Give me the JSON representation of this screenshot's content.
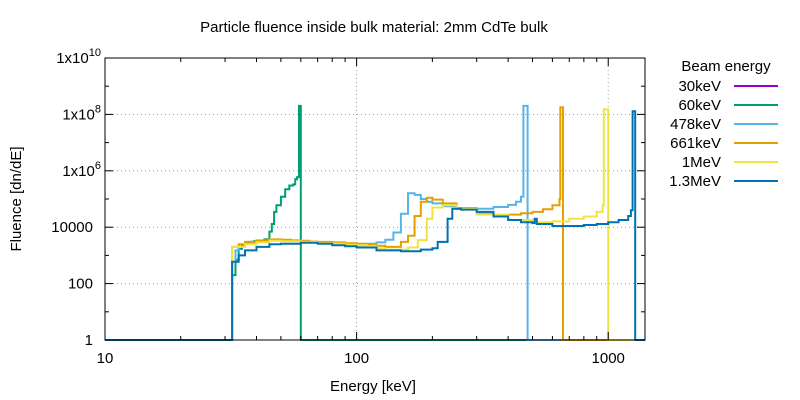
{
  "chart_data": {
    "type": "line",
    "title": "Particle fluence inside bulk material: 2mm CdTe bulk",
    "xlabel": "Energy [keV]",
    "ylabel": "Fluence [dn/dE]",
    "x_scale": "log",
    "y_scale": "log",
    "xlim": [
      10,
      1400
    ],
    "ylim": [
      1,
      10000000000
    ],
    "grid": true,
    "legend": {
      "title": "Beam energy",
      "placement": "right-outside"
    },
    "x_ticks": [
      {
        "value": 10,
        "label": "10"
      },
      {
        "value": 100,
        "label": "100"
      },
      {
        "value": 1000,
        "label": "1000"
      }
    ],
    "y_ticks": [
      {
        "value": 1,
        "label": "1",
        "exp": ""
      },
      {
        "value": 100,
        "label": "100",
        "exp": ""
      },
      {
        "value": 10000,
        "label": "10000",
        "exp": ""
      },
      {
        "value": 1000000,
        "label": "1x10",
        "exp": "6"
      },
      {
        "value": 100000000,
        "label": "1x10",
        "exp": "8"
      },
      {
        "value": 10000000000,
        "label": "1x10",
        "exp": "10"
      }
    ],
    "series": [
      {
        "name": "30keV",
        "color": "#9400d3",
        "points": [
          [
            10,
            1
          ],
          [
            30,
            1
          ],
          [
            32,
            1
          ]
        ]
      },
      {
        "name": "60keV",
        "color": "#009e73",
        "points": [
          [
            10,
            1
          ],
          [
            32,
            1
          ],
          [
            32,
            200
          ],
          [
            33,
            700
          ],
          [
            34,
            1700
          ],
          [
            35,
            2400
          ],
          [
            36,
            2800
          ],
          [
            37,
            3000
          ],
          [
            39,
            3200
          ],
          [
            41,
            3300
          ],
          [
            43,
            3700
          ],
          [
            45,
            7000
          ],
          [
            46,
            13000
          ],
          [
            47,
            35000
          ],
          [
            48,
            60000
          ],
          [
            50,
            120000
          ],
          [
            52,
            220000
          ],
          [
            54,
            300000
          ],
          [
            56,
            330000
          ],
          [
            57,
            500000
          ],
          [
            58,
            600000
          ],
          [
            59,
            200000000
          ],
          [
            60,
            1
          ],
          [
            1400,
            1
          ]
        ]
      },
      {
        "name": "478keV",
        "color": "#56b4e9",
        "points": [
          [
            10,
            1
          ],
          [
            32,
            1
          ],
          [
            32,
            600
          ],
          [
            33,
            1500
          ],
          [
            34,
            2000
          ],
          [
            36,
            2600
          ],
          [
            40,
            3100
          ],
          [
            45,
            3600
          ],
          [
            50,
            3300
          ],
          [
            60,
            3000
          ],
          [
            70,
            2900
          ],
          [
            80,
            2700
          ],
          [
            90,
            2600
          ],
          [
            100,
            2300
          ],
          [
            110,
            2600
          ],
          [
            120,
            2900
          ],
          [
            130,
            3600
          ],
          [
            140,
            6500
          ],
          [
            150,
            30000
          ],
          [
            160,
            160000
          ],
          [
            170,
            140000
          ],
          [
            180,
            100000
          ],
          [
            190,
            80000
          ],
          [
            200,
            70000
          ],
          [
            220,
            55000
          ],
          [
            250,
            48000
          ],
          [
            300,
            45000
          ],
          [
            350,
            52000
          ],
          [
            400,
            62000
          ],
          [
            430,
            80000
          ],
          [
            450,
            120000
          ],
          [
            460,
            200000000
          ],
          [
            478,
            1
          ],
          [
            1400,
            1
          ]
        ]
      },
      {
        "name": "661keV",
        "color": "#e69f00",
        "points": [
          [
            10,
            1
          ],
          [
            32,
            1
          ],
          [
            32,
            2000
          ],
          [
            34,
            2500
          ],
          [
            36,
            3000
          ],
          [
            40,
            3400
          ],
          [
            45,
            3700
          ],
          [
            50,
            3600
          ],
          [
            55,
            3400
          ],
          [
            60,
            3300
          ],
          [
            65,
            3100
          ],
          [
            70,
            3000
          ],
          [
            80,
            2900
          ],
          [
            90,
            2700
          ],
          [
            100,
            2600
          ],
          [
            110,
            2500
          ],
          [
            120,
            2200
          ],
          [
            130,
            2000
          ],
          [
            140,
            2000
          ],
          [
            150,
            3000
          ],
          [
            160,
            5000
          ],
          [
            170,
            25000
          ],
          [
            180,
            80000
          ],
          [
            190,
            110000
          ],
          [
            200,
            95000
          ],
          [
            220,
            70000
          ],
          [
            250,
            45000
          ],
          [
            300,
            30000
          ],
          [
            350,
            27000
          ],
          [
            400,
            28000
          ],
          [
            450,
            31000
          ],
          [
            500,
            35000
          ],
          [
            550,
            43000
          ],
          [
            600,
            60000
          ],
          [
            640,
            100000
          ],
          [
            645,
            180000000
          ],
          [
            661,
            1
          ],
          [
            1400,
            1
          ]
        ]
      },
      {
        "name": "1MeV",
        "color": "#f0e442",
        "points": [
          [
            10,
            1
          ],
          [
            32,
            1
          ],
          [
            32,
            2000
          ],
          [
            36,
            2500
          ],
          [
            40,
            2900
          ],
          [
            45,
            3300
          ],
          [
            50,
            3200
          ],
          [
            60,
            3000
          ],
          [
            70,
            2700
          ],
          [
            80,
            2600
          ],
          [
            90,
            2400
          ],
          [
            100,
            2300
          ],
          [
            110,
            2100
          ],
          [
            120,
            1800
          ],
          [
            130,
            1600
          ],
          [
            150,
            1600
          ],
          [
            160,
            1900
          ],
          [
            175,
            3500
          ],
          [
            190,
            20000
          ],
          [
            200,
            50000
          ],
          [
            220,
            60000
          ],
          [
            250,
            45000
          ],
          [
            300,
            28000
          ],
          [
            400,
            18000
          ],
          [
            500,
            15000
          ],
          [
            600,
            16000
          ],
          [
            700,
            20000
          ],
          [
            800,
            24000
          ],
          [
            900,
            35000
          ],
          [
            950,
            60000
          ],
          [
            960,
            150000000
          ],
          [
            1000,
            1
          ],
          [
            1400,
            1
          ]
        ]
      },
      {
        "name": "1.3MeV",
        "color": "#0072b2",
        "points": [
          [
            10,
            1
          ],
          [
            32,
            1
          ],
          [
            32,
            600
          ],
          [
            34,
            1000
          ],
          [
            36,
            1500
          ],
          [
            40,
            2000
          ],
          [
            45,
            2500
          ],
          [
            50,
            2600
          ],
          [
            60,
            2800
          ],
          [
            70,
            2600
          ],
          [
            80,
            2300
          ],
          [
            90,
            2100
          ],
          [
            100,
            1900
          ],
          [
            120,
            1500
          ],
          [
            150,
            1400
          ],
          [
            180,
            1600
          ],
          [
            200,
            1800
          ],
          [
            210,
            3000
          ],
          [
            230,
            20000
          ],
          [
            240,
            45000
          ],
          [
            260,
            42000
          ],
          [
            300,
            35000
          ],
          [
            350,
            24000
          ],
          [
            400,
            18000
          ],
          [
            450,
            15000
          ],
          [
            500,
            14000
          ],
          [
            510,
            20000
          ],
          [
            520,
            13000
          ],
          [
            600,
            11000
          ],
          [
            700,
            11000
          ],
          [
            800,
            12000
          ],
          [
            900,
            13000
          ],
          [
            1000,
            15000
          ],
          [
            1100,
            18000
          ],
          [
            1200,
            25000
          ],
          [
            1230,
            40000
          ],
          [
            1250,
            130000000
          ],
          [
            1280,
            1
          ],
          [
            1400,
            1
          ]
        ]
      }
    ]
  }
}
